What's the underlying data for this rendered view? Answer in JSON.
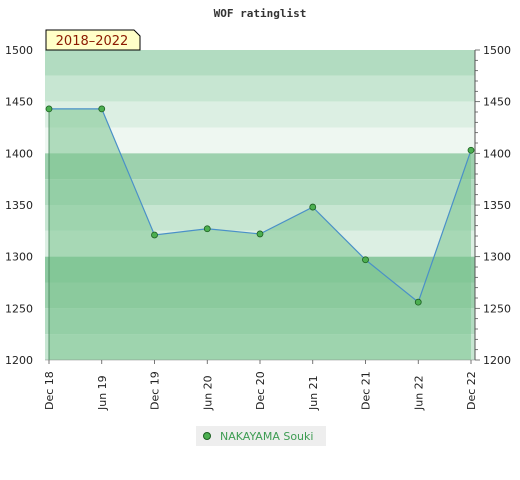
{
  "chart_data": {
    "type": "area",
    "title": "WOF ratinglist",
    "period_label": "2018–2022",
    "x": [
      "Dec 18",
      "Jun 19",
      "Dec 19",
      "Jun 20",
      "Dec 20",
      "Jun 21",
      "Dec 21",
      "Jun 22",
      "Dec 22"
    ],
    "series": [
      {
        "name": "NAKAYAMA Souki",
        "values": [
          1443,
          1443,
          1321,
          1327,
          1322,
          1348,
          1297,
          1256,
          1403
        ]
      }
    ],
    "ylim": [
      1200,
      1500
    ],
    "yticks": [
      1200,
      1250,
      1300,
      1350,
      1400,
      1450,
      1500
    ],
    "y_axis_sides": "both",
    "grid": false,
    "legend_position": "bottom-center",
    "colors": {
      "line": "#4a90c8",
      "fill": "#7cc48f",
      "marker": "#4caf50",
      "marker_border": "#1b5e20",
      "legend_text": "#3d9c52",
      "period_badge": "#ffffc8",
      "period_text": "#8b1a00"
    }
  }
}
